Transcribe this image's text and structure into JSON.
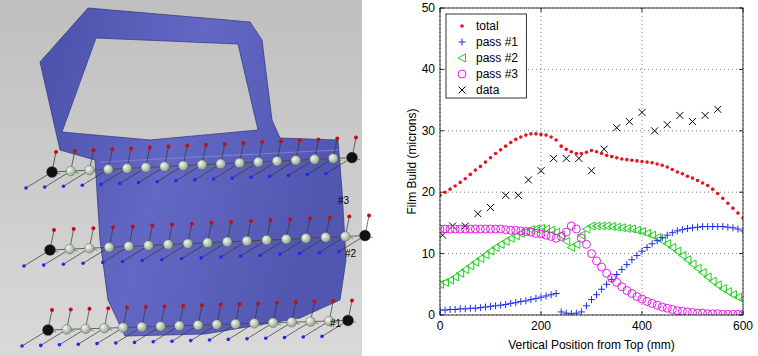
{
  "chart_data": {
    "type": "scatter",
    "xlabel": "Vertical Position from Top (mm)",
    "ylabel": "Film Build (microns)",
    "xlim": [
      0,
      600
    ],
    "ylim": [
      0,
      50
    ],
    "xticks": [
      0,
      200,
      400,
      600
    ],
    "yticks": [
      0,
      10,
      20,
      30,
      40,
      50
    ],
    "grid": true,
    "legend": "upper-left",
    "x": [
      0,
      10,
      20,
      30,
      40,
      50,
      60,
      70,
      80,
      90,
      100,
      110,
      120,
      130,
      140,
      150,
      160,
      170,
      180,
      190,
      200,
      210,
      220,
      230,
      240,
      250,
      260,
      270,
      280,
      290,
      300,
      310,
      320,
      330,
      340,
      350,
      360,
      370,
      380,
      390,
      400,
      410,
      420,
      430,
      440,
      450,
      460,
      470,
      480,
      490,
      500,
      510,
      520,
      530,
      540,
      550,
      560,
      570,
      580,
      590,
      600
    ],
    "series": [
      {
        "name": "total",
        "color": "#e8141c",
        "marker": "point",
        "values": [
          19.5,
          20,
          20.5,
          21,
          21.6,
          22.2,
          22.9,
          23.6,
          24.2,
          24.9,
          25.6,
          26.3,
          26.9,
          27.5,
          28.1,
          28.6,
          29,
          29.3,
          29.5,
          29.5,
          29.4,
          29.3,
          29,
          28.5,
          27.5,
          27,
          26.6,
          26.3,
          26.3,
          26.5,
          26.8,
          26.6,
          26.3,
          26,
          25.8,
          25.6,
          25.4,
          25.3,
          25.2,
          25.1,
          25,
          24.9,
          24.8,
          24.6,
          24.4,
          24.1,
          23.7,
          23.3,
          23,
          22.6,
          22.3,
          21.9,
          21.5,
          21.1,
          20.5,
          19.8,
          19,
          18.2,
          17.4,
          16.6,
          15.8
        ]
      },
      {
        "name": "pass #1",
        "color": "#1a2ee8",
        "marker": "plus",
        "values": [
          0.8,
          0.8,
          0.9,
          0.9,
          1,
          1,
          1.1,
          1.1,
          1.2,
          1.3,
          1.4,
          1.5,
          1.6,
          1.7,
          1.9,
          2,
          2.2,
          2.3,
          2.5,
          2.7,
          2.9,
          3.1,
          3.3,
          3.5,
          0.5,
          0.3,
          0.2,
          0.3,
          0.5,
          1.5,
          2.5,
          3.3,
          4.2,
          5,
          5.8,
          6.6,
          7.4,
          8.2,
          9,
          9.7,
          10.4,
          11,
          11.6,
          12.1,
          12.6,
          13,
          13.4,
          13.7,
          13.9,
          14.1,
          14.2,
          14.3,
          14.4,
          14.4,
          14.4,
          14.4,
          14.4,
          14.3,
          14.2,
          14,
          13.7
        ]
      },
      {
        "name": "pass #2",
        "color": "#1ed01e",
        "marker": "triangle-left",
        "values": [
          5,
          5.3,
          5.7,
          6.2,
          6.8,
          7.4,
          8,
          8.6,
          9.2,
          9.8,
          10.4,
          11,
          11.5,
          12,
          12.5,
          12.9,
          13.3,
          13.6,
          13.9,
          14,
          14.1,
          14,
          13.8,
          13.5,
          13,
          12,
          11,
          11.5,
          13,
          14,
          14.5,
          14.5,
          14.5,
          14.5,
          14.4,
          14.3,
          14.2,
          14.1,
          14,
          13.8,
          13.6,
          13.3,
          13,
          12.6,
          12.1,
          11.6,
          11,
          10.4,
          9.7,
          9,
          8.3,
          7.6,
          6.9,
          6.2,
          5.5,
          4.9,
          4.3,
          3.8,
          3.3,
          2.9,
          2.5
        ]
      },
      {
        "name": "pass #3",
        "color": "#e81ee8",
        "marker": "circle",
        "values": [
          14,
          14,
          14,
          14,
          14,
          14,
          14,
          14,
          14,
          14,
          14,
          14,
          14,
          13.9,
          13.8,
          13.8,
          13.7,
          13.6,
          13.5,
          13.3,
          13.2,
          13,
          12.8,
          12.5,
          12.8,
          13.5,
          14.5,
          14,
          12.5,
          11.5,
          10,
          8.8,
          7.8,
          6.8,
          6,
          5.3,
          4.6,
          4,
          3.5,
          3,
          2.6,
          2.2,
          1.9,
          1.6,
          1.3,
          1.1,
          0.9,
          0.7,
          0.6,
          0.5,
          0.4,
          0.3,
          0.3,
          0.2,
          0.2,
          0.2,
          0.1,
          0.1,
          0.1,
          0.1,
          0.1
        ]
      },
      {
        "name": "data",
        "color": "#000000",
        "marker": "x",
        "x": [
          5,
          25,
          50,
          75,
          100,
          130,
          155,
          175,
          200,
          225,
          250,
          275,
          300,
          325,
          350,
          375,
          400,
          425,
          450,
          475,
          500,
          525,
          550
        ],
        "values": [
          13,
          14.5,
          14.5,
          16.5,
          17.5,
          19.5,
          19.5,
          22,
          23.5,
          25.5,
          25.5,
          25.5,
          23.5,
          27,
          30.5,
          31.5,
          33,
          30,
          31,
          32.5,
          31.5,
          32.5,
          33.5
        ]
      }
    ]
  },
  "diagram": {
    "labels": [
      "#1",
      "#2",
      "#3"
    ]
  }
}
